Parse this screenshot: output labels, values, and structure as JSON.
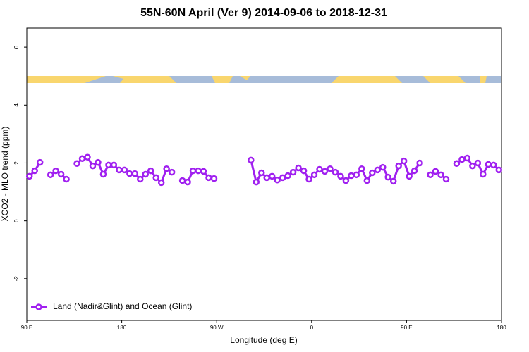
{
  "chart_data": {
    "type": "line",
    "title": "55N-60N April (Ver 9)   2014-09-06 to 2018-12-31",
    "x_label": "Longitude (deg E)",
    "y_label": "XCO2 - MLO trend (ppm)",
    "xlim": [
      90,
      540
    ],
    "ylim": [
      -3.44,
      6.66
    ],
    "xticks": [
      {
        "value": 90,
        "label": "90 E"
      },
      180,
      {
        "value": 270,
        "label": "90 W"
      },
      {
        "value": 360,
        "label": "0"
      },
      {
        "value": 450,
        "label": "90 E"
      },
      {
        "value": 540,
        "label": "180"
      }
    ],
    "yticks": [
      -2,
      0,
      2,
      4,
      6
    ],
    "legend": "bottom-left",
    "x": [
      92.5,
      97.5,
      102.5,
      107.5,
      112.5,
      117.5,
      122.5,
      127.5,
      132.5,
      137.5,
      142.5,
      147.5,
      152.5,
      157.5,
      162.5,
      167.5,
      172.5,
      177.5,
      182.5,
      187.5,
      192.5,
      197.5,
      202.5,
      207.5,
      212.5,
      217.5,
      222.5,
      227.5,
      232.5,
      237.5,
      242.5,
      247.5,
      252.5,
      257.5,
      262.5,
      267.5,
      272.5,
      277.5,
      282.5,
      287.5,
      292.5,
      297.5,
      302.5,
      307.5,
      312.5,
      317.5,
      322.5,
      327.5,
      332.5,
      337.5,
      342.5,
      347.5,
      352.5,
      357.5,
      362.5,
      367.5,
      372.5,
      377.5,
      382.5,
      387.5,
      392.5,
      397.5,
      402.5,
      407.5,
      412.5,
      417.5,
      422.5,
      427.5,
      432.5,
      437.5,
      442.5,
      447.5,
      452.5,
      457.5,
      462.5,
      467.5,
      472.5,
      477.5,
      482.5,
      487.5,
      492.5,
      497.5,
      502.5,
      507.5,
      512.5,
      517.5,
      522.5,
      527.5,
      532.5,
      537.5
    ],
    "series": [
      {
        "name": "Land (Nadir&Glint) and Ocean (Glint)",
        "color": "#a020f0",
        "values": [
          1.54,
          1.73,
          2.02,
          null,
          1.59,
          1.73,
          1.61,
          1.44,
          null,
          1.98,
          2.15,
          2.2,
          1.9,
          2.02,
          1.61,
          1.93,
          1.93,
          1.76,
          1.76,
          1.63,
          1.63,
          1.44,
          1.61,
          1.73,
          1.49,
          1.32,
          1.8,
          1.68,
          null,
          1.39,
          1.34,
          1.73,
          1.73,
          1.71,
          1.49,
          1.46,
          null,
          null,
          null,
          null,
          null,
          null,
          2.1,
          1.34,
          1.66,
          1.49,
          1.54,
          1.41,
          1.49,
          1.56,
          1.68,
          1.83,
          1.73,
          1.44,
          1.59,
          1.78,
          1.71,
          1.8,
          1.68,
          1.54,
          1.39,
          1.56,
          1.59,
          1.8,
          1.39,
          1.66,
          1.76,
          1.85,
          1.51,
          1.37,
          1.9,
          2.07,
          1.54,
          1.73,
          2.0,
          null,
          1.59,
          1.71,
          1.59,
          1.44,
          null,
          1.98,
          2.12,
          2.17,
          1.9,
          2.0,
          1.61,
          1.95,
          1.93,
          1.76
        ]
      }
    ]
  }
}
